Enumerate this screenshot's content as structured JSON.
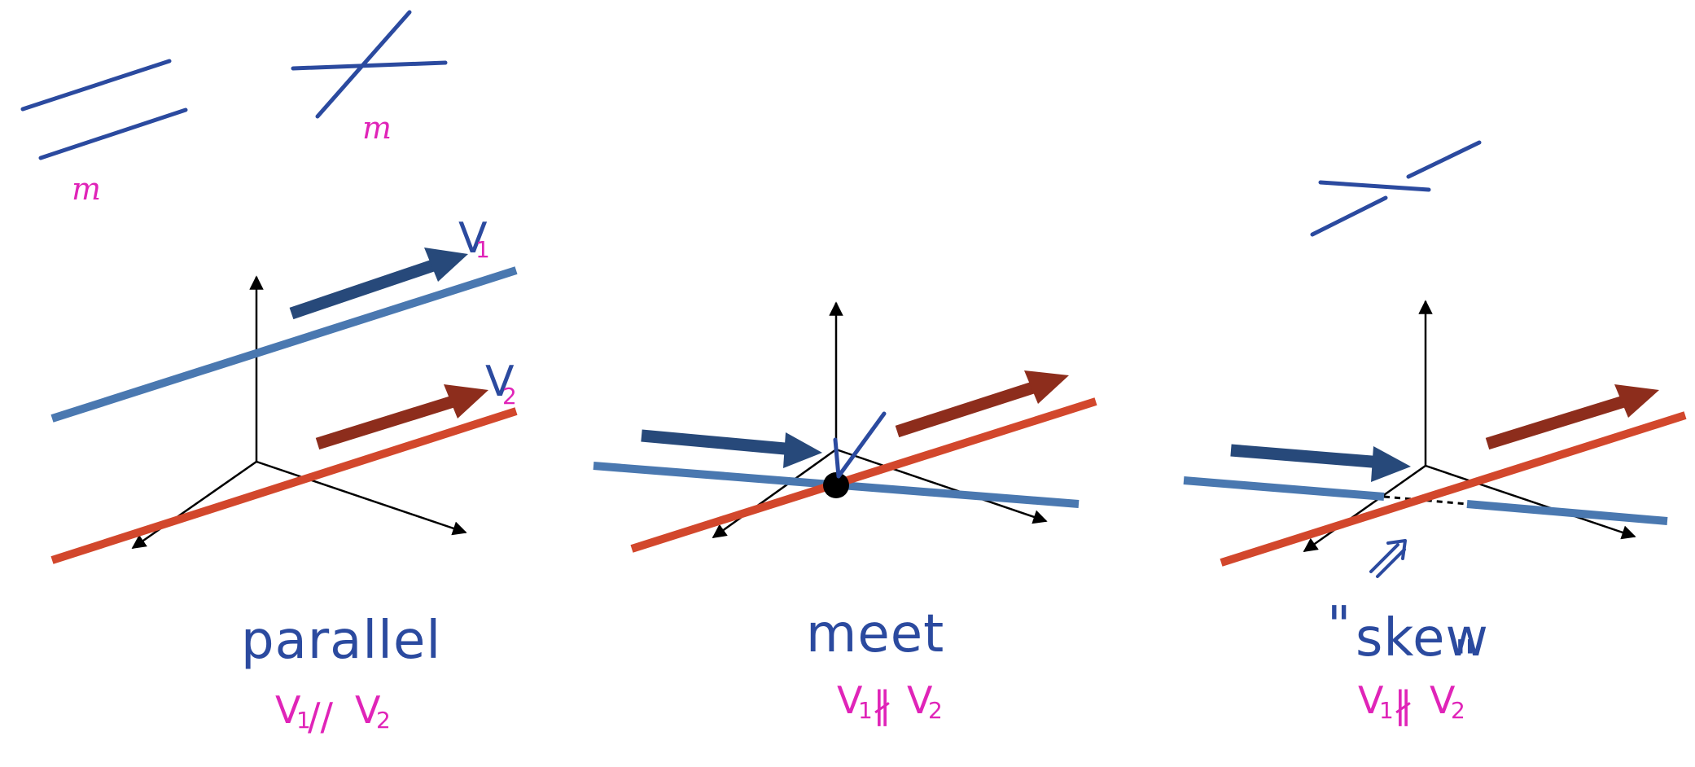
{
  "colors": {
    "ink_blue": "#2b4a9f",
    "ink_pink": "#e024b8",
    "line_blue": "#4a78b0",
    "line_red": "#d2472c",
    "arrow_blue": "#27497a",
    "arrow_red": "#8d2d1c",
    "axes": "#000000"
  },
  "sketches": {
    "parallel_m": "m",
    "crossing_m": "m"
  },
  "panels": [
    {
      "title": "parallel",
      "vector1_label": "V",
      "vector1_sub": "1",
      "vector2_label": "V",
      "vector2_sub": "2",
      "relation_left": "V",
      "relation_left_sub": "1",
      "relation_symbol": "//",
      "relation_right": "V",
      "relation_right_sub": "2"
    },
    {
      "title": "meet",
      "relation_left": "V",
      "relation_left_sub": "1",
      "relation_symbol": "∦",
      "relation_right": "V",
      "relation_right_sub": "2"
    },
    {
      "title": "skew",
      "open_quote": "\"",
      "close_quote": "\"",
      "relation_left": "V",
      "relation_left_sub": "1",
      "relation_symbol": "∦",
      "relation_right": "V",
      "relation_right_sub": "2"
    }
  ]
}
